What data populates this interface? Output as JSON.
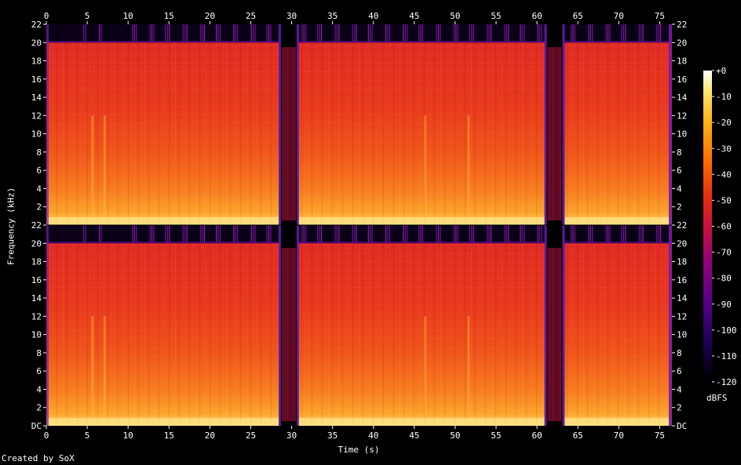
{
  "chart_data": {
    "type": "heatmap",
    "title": "",
    "xlabel": "Time (s)",
    "ylabel": "Frequency (kHz)",
    "x_ticks": [
      0,
      5,
      10,
      15,
      20,
      25,
      30,
      35,
      40,
      45,
      50,
      55,
      60,
      65,
      70,
      75
    ],
    "x_range": [
      0,
      76.5
    ],
    "channels": [
      {
        "y_ticks": [
          "2",
          "4",
          "6",
          "8",
          "10",
          "12",
          "14",
          "16",
          "18",
          "20",
          "22"
        ],
        "y_range": [
          0,
          22
        ]
      },
      {
        "y_ticks": [
          "DC",
          "2",
          "4",
          "6",
          "8",
          "10",
          "12",
          "14",
          "16",
          "18",
          "20",
          "22"
        ],
        "y_range": [
          0,
          22
        ]
      }
    ],
    "colorbar": {
      "unit": "dBFS",
      "ticks": [
        "+0",
        "-10",
        "-20",
        "-30",
        "-40",
        "-50",
        "-60",
        "-70",
        "-80",
        "-90",
        "-100",
        "-110",
        "-120"
      ],
      "range": [
        -120,
        0
      ],
      "colors": [
        "#000000",
        "#2a006e",
        "#6a0088",
        "#a8006a",
        "#d81e2a",
        "#f44d0a",
        "#ff8c00",
        "#ffc81e",
        "#ffee8c",
        "#ffffff"
      ]
    },
    "lowpass_cutoff_khz": 20,
    "silent_gaps_s": [
      [
        28.5,
        30.8
      ],
      [
        61.0,
        63.3
      ]
    ],
    "bright_vertical_bands_s": [
      5.5,
      7.0,
      46.2,
      51.5
    ]
  },
  "footer": {
    "credit": "Created by SoX"
  }
}
